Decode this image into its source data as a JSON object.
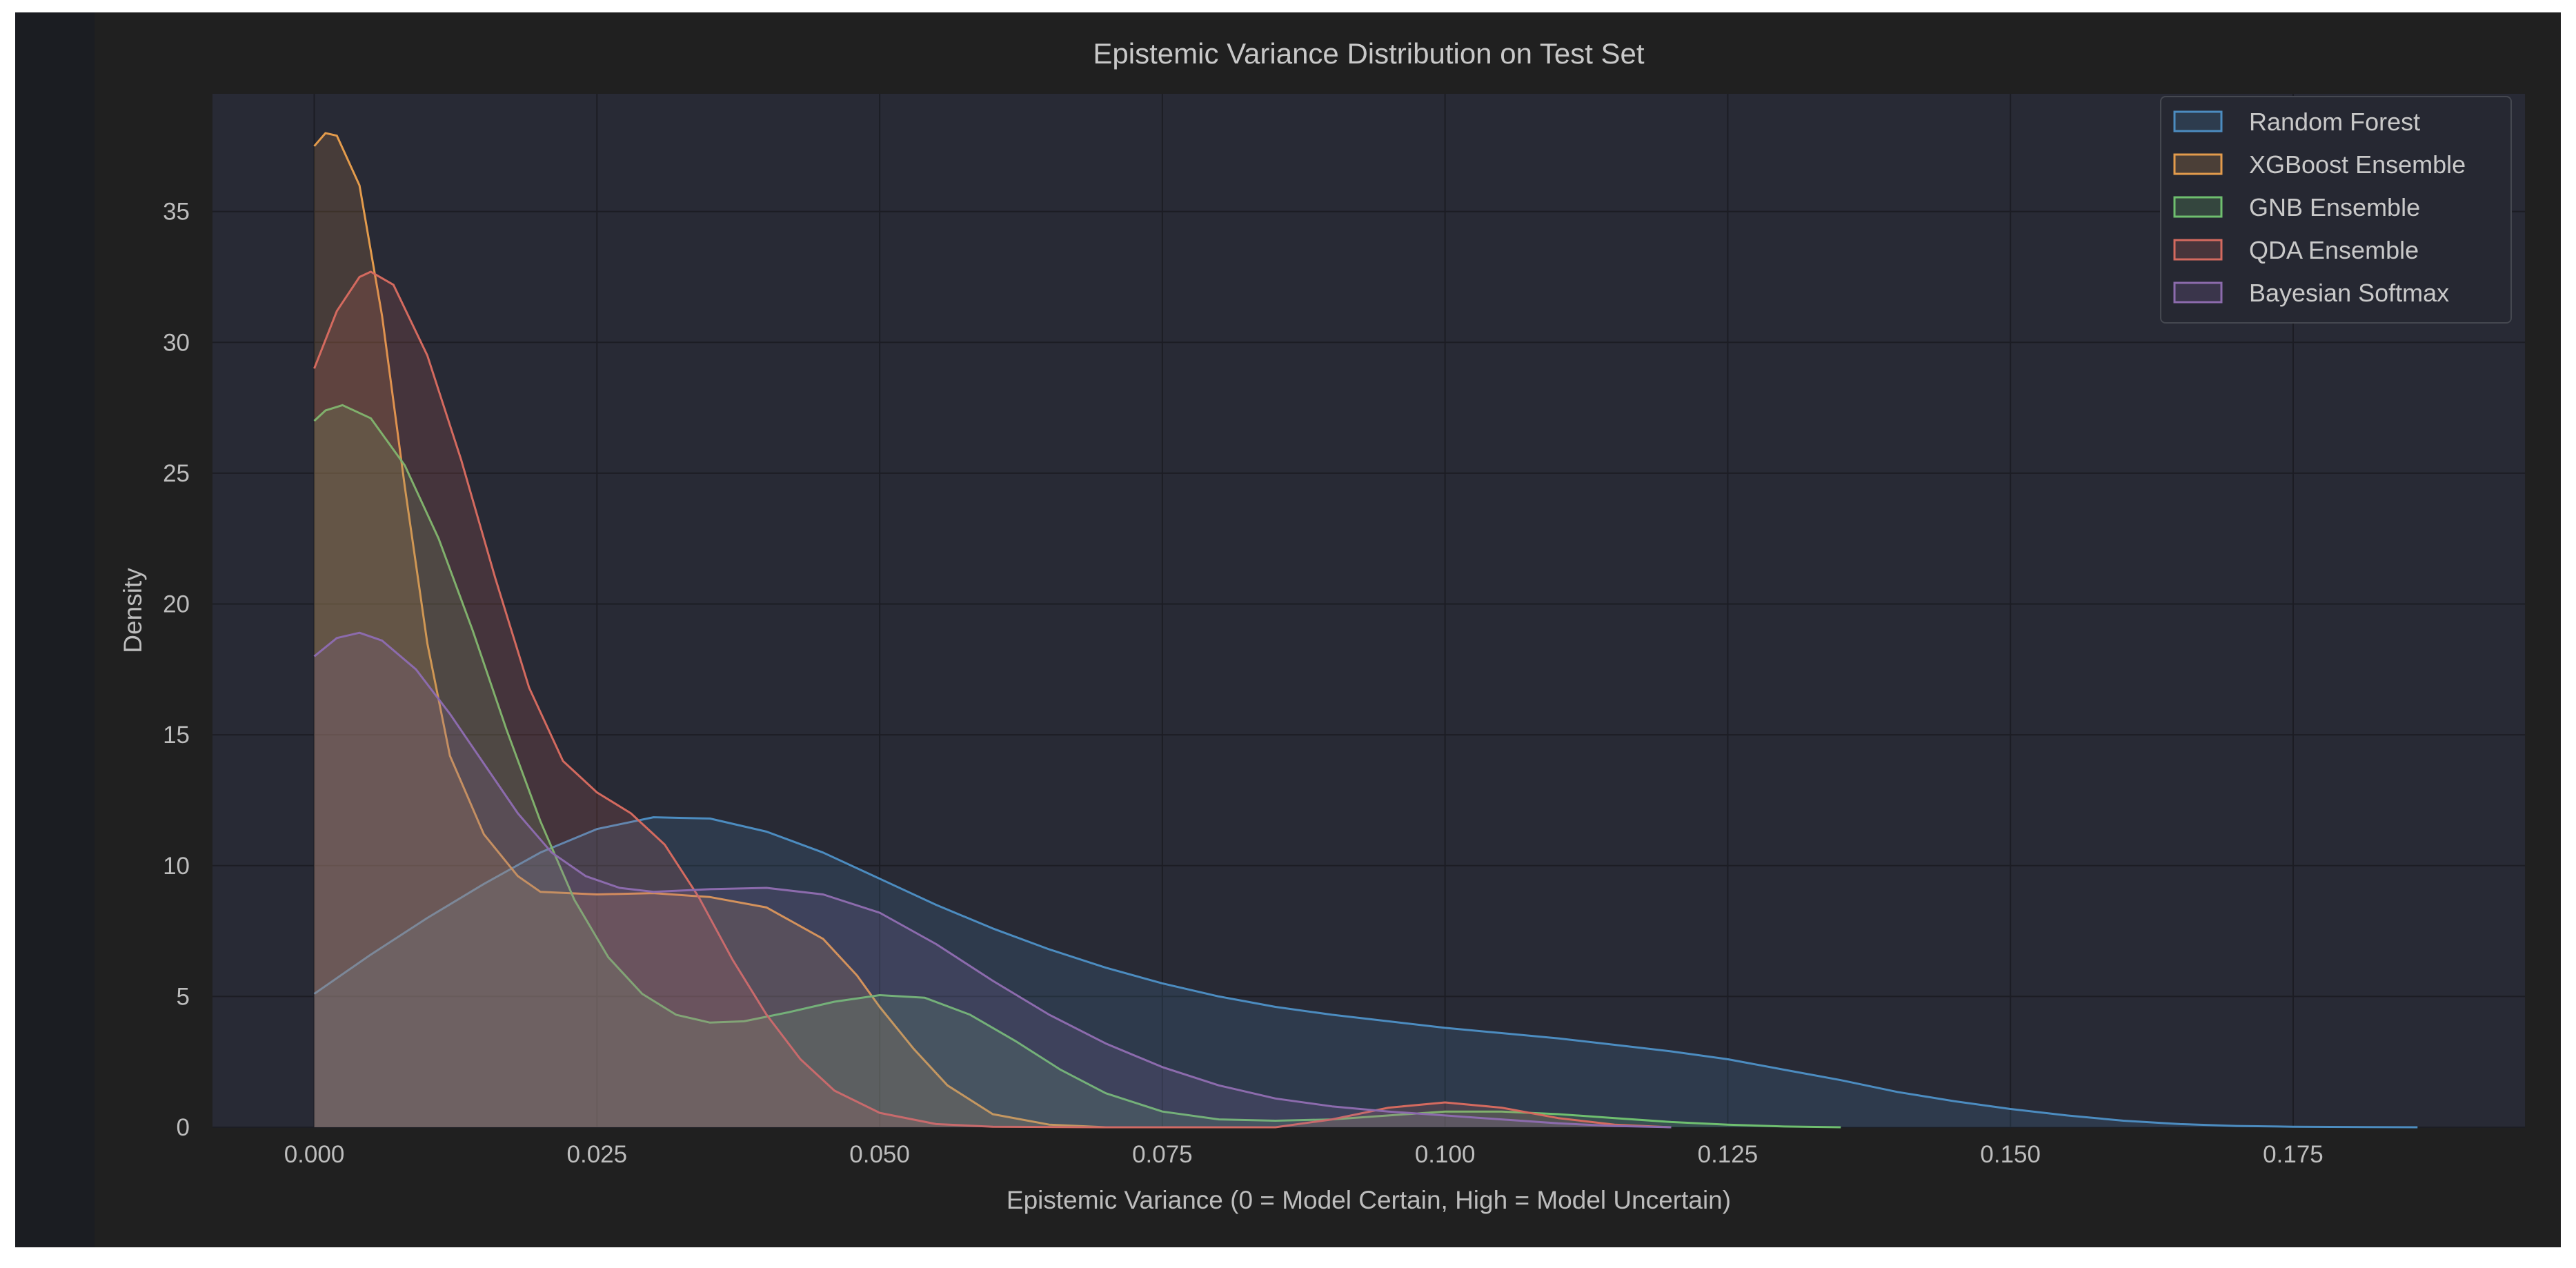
{
  "chart_data": {
    "type": "area",
    "title": "Epistemic Variance Distribution on Test Set",
    "xlabel": "Epistemic Variance (0 = Model Certain, High = Model Uncertain)",
    "ylabel": "Density",
    "xlim": [
      -0.009,
      0.1955
    ],
    "ylim": [
      0,
      39.5
    ],
    "xticks": [
      0.0,
      0.025,
      0.05,
      0.075,
      0.1,
      0.125,
      0.15,
      0.175
    ],
    "xtick_labels": [
      "0.000",
      "0.025",
      "0.050",
      "0.075",
      "0.100",
      "0.125",
      "0.150",
      "0.175"
    ],
    "yticks": [
      0,
      5,
      10,
      15,
      20,
      25,
      30,
      35
    ],
    "ytick_labels": [
      "0",
      "5",
      "10",
      "15",
      "20",
      "25",
      "30",
      "35"
    ],
    "grid": true,
    "legend_position": "top-right",
    "series": [
      {
        "name": "Random Forest",
        "color": "#4c8cc0",
        "points": [
          [
            0.0,
            5.1
          ],
          [
            0.005,
            6.6
          ],
          [
            0.01,
            8.0
          ],
          [
            0.015,
            9.3
          ],
          [
            0.02,
            10.5
          ],
          [
            0.025,
            11.4
          ],
          [
            0.03,
            11.85
          ],
          [
            0.035,
            11.8
          ],
          [
            0.04,
            11.3
          ],
          [
            0.045,
            10.5
          ],
          [
            0.05,
            9.5
          ],
          [
            0.055,
            8.5
          ],
          [
            0.06,
            7.6
          ],
          [
            0.065,
            6.8
          ],
          [
            0.07,
            6.1
          ],
          [
            0.075,
            5.5
          ],
          [
            0.08,
            5.0
          ],
          [
            0.085,
            4.6
          ],
          [
            0.09,
            4.3
          ],
          [
            0.095,
            4.05
          ],
          [
            0.1,
            3.8
          ],
          [
            0.105,
            3.6
          ],
          [
            0.11,
            3.4
          ],
          [
            0.115,
            3.15
          ],
          [
            0.12,
            2.9
          ],
          [
            0.125,
            2.6
          ],
          [
            0.13,
            2.2
          ],
          [
            0.135,
            1.8
          ],
          [
            0.14,
            1.35
          ],
          [
            0.145,
            1.0
          ],
          [
            0.15,
            0.7
          ],
          [
            0.155,
            0.45
          ],
          [
            0.16,
            0.25
          ],
          [
            0.165,
            0.12
          ],
          [
            0.17,
            0.05
          ],
          [
            0.175,
            0.02
          ],
          [
            0.18,
            0.01
          ],
          [
            0.186,
            0.0
          ]
        ]
      },
      {
        "name": "XGBoost Ensemble",
        "color": "#e39b4c",
        "points": [
          [
            0.0,
            37.5
          ],
          [
            0.001,
            38.0
          ],
          [
            0.002,
            37.9
          ],
          [
            0.004,
            36.0
          ],
          [
            0.006,
            31.0
          ],
          [
            0.008,
            24.5
          ],
          [
            0.01,
            18.5
          ],
          [
            0.012,
            14.2
          ],
          [
            0.015,
            11.2
          ],
          [
            0.018,
            9.6
          ],
          [
            0.02,
            9.0
          ],
          [
            0.025,
            8.9
          ],
          [
            0.03,
            8.95
          ],
          [
            0.035,
            8.8
          ],
          [
            0.04,
            8.4
          ],
          [
            0.045,
            7.2
          ],
          [
            0.048,
            5.8
          ],
          [
            0.05,
            4.6
          ],
          [
            0.053,
            3.0
          ],
          [
            0.056,
            1.6
          ],
          [
            0.06,
            0.5
          ],
          [
            0.065,
            0.1
          ],
          [
            0.07,
            0.0
          ]
        ]
      },
      {
        "name": "GNB Ensemble",
        "color": "#6fbf6f",
        "points": [
          [
            0.0,
            27.0
          ],
          [
            0.001,
            27.4
          ],
          [
            0.0025,
            27.6
          ],
          [
            0.005,
            27.1
          ],
          [
            0.008,
            25.3
          ],
          [
            0.011,
            22.5
          ],
          [
            0.014,
            19.0
          ],
          [
            0.017,
            15.2
          ],
          [
            0.02,
            11.7
          ],
          [
            0.023,
            8.7
          ],
          [
            0.026,
            6.5
          ],
          [
            0.029,
            5.1
          ],
          [
            0.032,
            4.3
          ],
          [
            0.035,
            4.0
          ],
          [
            0.038,
            4.05
          ],
          [
            0.042,
            4.4
          ],
          [
            0.046,
            4.8
          ],
          [
            0.05,
            5.05
          ],
          [
            0.054,
            4.95
          ],
          [
            0.058,
            4.3
          ],
          [
            0.062,
            3.3
          ],
          [
            0.066,
            2.2
          ],
          [
            0.07,
            1.3
          ],
          [
            0.075,
            0.6
          ],
          [
            0.08,
            0.3
          ],
          [
            0.085,
            0.25
          ],
          [
            0.09,
            0.3
          ],
          [
            0.095,
            0.45
          ],
          [
            0.1,
            0.6
          ],
          [
            0.105,
            0.6
          ],
          [
            0.11,
            0.5
          ],
          [
            0.115,
            0.35
          ],
          [
            0.12,
            0.2
          ],
          [
            0.125,
            0.1
          ],
          [
            0.13,
            0.03
          ],
          [
            0.135,
            0.0
          ]
        ]
      },
      {
        "name": "QDA Ensemble",
        "color": "#d46a5f",
        "points": [
          [
            0.0,
            29.0
          ],
          [
            0.002,
            31.2
          ],
          [
            0.004,
            32.5
          ],
          [
            0.005,
            32.7
          ],
          [
            0.007,
            32.2
          ],
          [
            0.01,
            29.5
          ],
          [
            0.013,
            25.5
          ],
          [
            0.016,
            21.0
          ],
          [
            0.019,
            16.8
          ],
          [
            0.022,
            14.0
          ],
          [
            0.025,
            12.8
          ],
          [
            0.028,
            12.0
          ],
          [
            0.031,
            10.8
          ],
          [
            0.034,
            8.8
          ],
          [
            0.037,
            6.4
          ],
          [
            0.04,
            4.3
          ],
          [
            0.043,
            2.6
          ],
          [
            0.046,
            1.4
          ],
          [
            0.05,
            0.55
          ],
          [
            0.055,
            0.12
          ],
          [
            0.06,
            0.02
          ],
          [
            0.07,
            0.0
          ],
          [
            0.085,
            0.0
          ],
          [
            0.09,
            0.3
          ],
          [
            0.095,
            0.75
          ],
          [
            0.1,
            0.95
          ],
          [
            0.105,
            0.75
          ],
          [
            0.11,
            0.35
          ],
          [
            0.115,
            0.1
          ],
          [
            0.12,
            0.0
          ]
        ]
      },
      {
        "name": "Bayesian Softmax",
        "color": "#8c6bad",
        "points": [
          [
            0.0,
            18.0
          ],
          [
            0.002,
            18.7
          ],
          [
            0.004,
            18.9
          ],
          [
            0.006,
            18.6
          ],
          [
            0.009,
            17.5
          ],
          [
            0.012,
            15.8
          ],
          [
            0.015,
            13.9
          ],
          [
            0.018,
            12.0
          ],
          [
            0.021,
            10.5
          ],
          [
            0.024,
            9.6
          ],
          [
            0.027,
            9.15
          ],
          [
            0.03,
            9.0
          ],
          [
            0.035,
            9.1
          ],
          [
            0.04,
            9.15
          ],
          [
            0.045,
            8.9
          ],
          [
            0.05,
            8.2
          ],
          [
            0.055,
            7.0
          ],
          [
            0.06,
            5.6
          ],
          [
            0.065,
            4.3
          ],
          [
            0.07,
            3.2
          ],
          [
            0.075,
            2.3
          ],
          [
            0.08,
            1.6
          ],
          [
            0.085,
            1.1
          ],
          [
            0.09,
            0.8
          ],
          [
            0.095,
            0.6
          ],
          [
            0.1,
            0.45
          ],
          [
            0.105,
            0.3
          ],
          [
            0.11,
            0.15
          ],
          [
            0.115,
            0.05
          ],
          [
            0.12,
            0.0
          ]
        ]
      }
    ]
  }
}
